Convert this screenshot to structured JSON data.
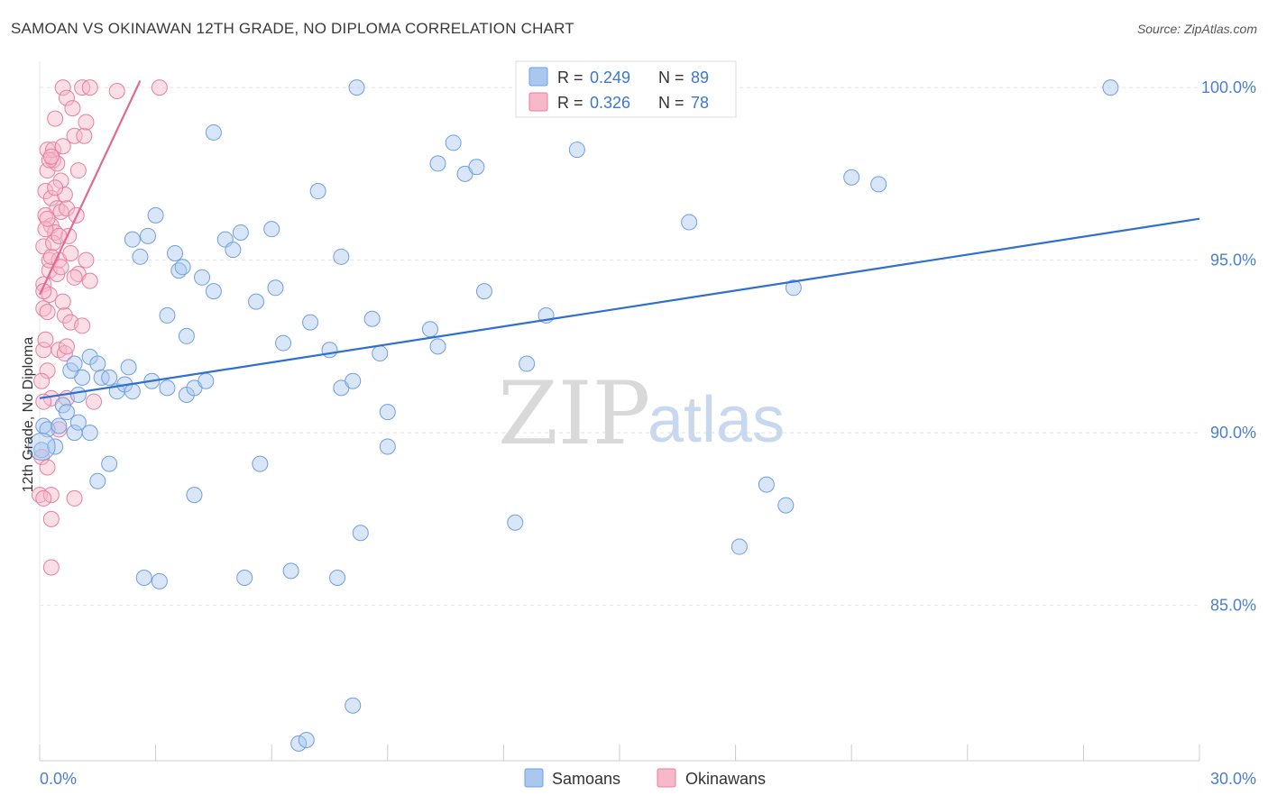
{
  "header": {
    "title": "SAMOAN VS OKINAWAN 12TH GRADE, NO DIPLOMA CORRELATION CHART",
    "source": "Source: ZipAtlas.com"
  },
  "watermark": {
    "zip": "ZIP",
    "atlas": "atlas"
  },
  "legend": {
    "items": [
      {
        "r_label": "R =",
        "r_value": "0.249",
        "n_label": "N =",
        "n_value": "89",
        "color": "#a9c8f0",
        "stroke": "#6f9fe0"
      },
      {
        "r_label": "R =",
        "r_value": "0.326",
        "n_label": "N =",
        "n_value": "78",
        "color": "#f7b8ca",
        "stroke": "#e87ea0"
      }
    ]
  },
  "bottom_legend": {
    "samoans": "Samoans",
    "okinawans": "Okinawans"
  },
  "chart_data": {
    "type": "scatter",
    "title": "SAMOAN VS OKINAWAN 12TH GRADE, NO DIPLOMA CORRELATION CHART",
    "xlabel": "",
    "ylabel": "12th Grade, No Diploma",
    "xlim": [
      0,
      30
    ],
    "ylim": [
      80.5,
      100.5
    ],
    "x_tick_labels": [
      "0.0%",
      "30.0%"
    ],
    "y_ticks": [
      85,
      90,
      95,
      100
    ],
    "y_tick_labels": [
      "85.0%",
      "90.0%",
      "95.0%",
      "100.0%"
    ],
    "grid": true,
    "colors": {
      "samoans": "#6f9fe0",
      "okinawans": "#e87ea0",
      "samoans_line": "#2f6fce",
      "okinawans_line": "#e06a95"
    },
    "series": [
      {
        "name": "Samoans",
        "trend": {
          "x": [
            0,
            30
          ],
          "y": [
            91.0,
            96.2
          ]
        },
        "points": [
          [
            0.05,
            89.5
          ],
          [
            0.1,
            90.2
          ],
          [
            0.2,
            90.1
          ],
          [
            0.4,
            89.6
          ],
          [
            0.5,
            90.2
          ],
          [
            0.6,
            90.8
          ],
          [
            0.7,
            90.6
          ],
          [
            0.9,
            90.0
          ],
          [
            1.0,
            91.1
          ],
          [
            1.1,
            91.6
          ],
          [
            0.8,
            91.8
          ],
          [
            0.9,
            92.0
          ],
          [
            1.3,
            92.2
          ],
          [
            1.5,
            92.0
          ],
          [
            1.6,
            91.6
          ],
          [
            1.8,
            91.6
          ],
          [
            2.0,
            91.2
          ],
          [
            2.2,
            91.4
          ],
          [
            2.4,
            91.2
          ],
          [
            2.9,
            91.5
          ],
          [
            3.3,
            91.3
          ],
          [
            3.8,
            91.1
          ],
          [
            4.0,
            91.3
          ],
          [
            4.3,
            91.5
          ],
          [
            2.4,
            95.6
          ],
          [
            2.6,
            95.1
          ],
          [
            2.8,
            95.7
          ],
          [
            3.0,
            96.3
          ],
          [
            3.5,
            95.2
          ],
          [
            3.6,
            94.7
          ],
          [
            3.7,
            94.8
          ],
          [
            4.2,
            94.5
          ],
          [
            4.5,
            94.1
          ],
          [
            4.8,
            95.6
          ],
          [
            5.0,
            95.3
          ],
          [
            5.2,
            95.8
          ],
          [
            5.6,
            93.8
          ],
          [
            6.0,
            95.9
          ],
          [
            6.1,
            94.2
          ],
          [
            6.3,
            92.6
          ],
          [
            7.0,
            93.2
          ],
          [
            7.2,
            97.0
          ],
          [
            7.5,
            92.4
          ],
          [
            7.8,
            91.3
          ],
          [
            8.1,
            91.5
          ],
          [
            8.6,
            93.3
          ],
          [
            8.8,
            92.3
          ],
          [
            9.0,
            90.6
          ],
          [
            3.3,
            93.4
          ],
          [
            3.8,
            92.8
          ],
          [
            4.5,
            98.7
          ],
          [
            2.3,
            91.9
          ],
          [
            1.3,
            90.0
          ],
          [
            1.8,
            89.1
          ],
          [
            1.5,
            88.6
          ],
          [
            2.7,
            85.8
          ],
          [
            3.1,
            85.7
          ],
          [
            4.0,
            88.2
          ],
          [
            5.3,
            85.8
          ],
          [
            5.7,
            89.1
          ],
          [
            6.5,
            86.0
          ],
          [
            7.7,
            85.8
          ],
          [
            8.3,
            87.1
          ],
          [
            8.1,
            82.1
          ],
          [
            6.7,
            81.0
          ],
          [
            6.9,
            81.1
          ],
          [
            8.2,
            100.0
          ],
          [
            9.0,
            89.6
          ],
          [
            10.1,
            93.0
          ],
          [
            10.3,
            92.5
          ],
          [
            10.3,
            97.8
          ],
          [
            10.7,
            98.4
          ],
          [
            11.0,
            97.5
          ],
          [
            11.3,
            97.7
          ],
          [
            11.5,
            94.1
          ],
          [
            12.3,
            87.4
          ],
          [
            12.6,
            92.0
          ],
          [
            13.1,
            93.4
          ],
          [
            13.9,
            98.2
          ],
          [
            16.8,
            96.1
          ],
          [
            18.1,
            86.7
          ],
          [
            18.8,
            88.5
          ],
          [
            19.3,
            87.9
          ],
          [
            19.5,
            94.2
          ],
          [
            21.0,
            97.4
          ],
          [
            21.7,
            97.2
          ],
          [
            27.7,
            100.0
          ],
          [
            7.8,
            95.1
          ],
          [
            1.0,
            90.3
          ]
        ]
      },
      {
        "name": "Okinawans",
        "trend": {
          "x": [
            0,
            2.6
          ],
          "y": [
            94.0,
            100.2
          ]
        },
        "points": [
          [
            0.0,
            88.2
          ],
          [
            0.05,
            89.3
          ],
          [
            0.1,
            92.4
          ],
          [
            0.1,
            93.6
          ],
          [
            0.1,
            94.3
          ],
          [
            0.1,
            95.4
          ],
          [
            0.15,
            96.3
          ],
          [
            0.15,
            97.0
          ],
          [
            0.2,
            97.6
          ],
          [
            0.2,
            98.2
          ],
          [
            0.25,
            94.7
          ],
          [
            0.25,
            95.0
          ],
          [
            0.3,
            96.0
          ],
          [
            0.3,
            96.8
          ],
          [
            0.35,
            97.9
          ],
          [
            0.35,
            98.2
          ],
          [
            0.4,
            99.1
          ],
          [
            0.4,
            95.8
          ],
          [
            0.45,
            96.5
          ],
          [
            0.45,
            94.6
          ],
          [
            0.5,
            95.0
          ],
          [
            0.5,
            92.4
          ],
          [
            0.55,
            97.3
          ],
          [
            0.55,
            96.4
          ],
          [
            0.6,
            100.0
          ],
          [
            0.6,
            98.3
          ],
          [
            0.65,
            96.9
          ],
          [
            0.65,
            93.4
          ],
          [
            0.7,
            99.7
          ],
          [
            0.7,
            96.5
          ],
          [
            0.75,
            95.7
          ],
          [
            0.8,
            95.2
          ],
          [
            0.8,
            93.2
          ],
          [
            0.85,
            99.4
          ],
          [
            0.9,
            98.6
          ],
          [
            0.95,
            96.3
          ],
          [
            1.0,
            97.6
          ],
          [
            1.0,
            94.6
          ],
          [
            1.1,
            100.0
          ],
          [
            1.15,
            98.6
          ],
          [
            1.2,
            99.0
          ],
          [
            1.3,
            100.0
          ],
          [
            1.2,
            95.0
          ],
          [
            1.1,
            93.1
          ],
          [
            0.3,
            88.2
          ],
          [
            0.3,
            87.5
          ],
          [
            0.3,
            86.1
          ],
          [
            0.9,
            88.1
          ],
          [
            0.5,
            90.1
          ],
          [
            0.3,
            91.0
          ],
          [
            0.2,
            91.8
          ],
          [
            0.15,
            92.7
          ],
          [
            0.2,
            93.5
          ],
          [
            0.25,
            94.0
          ],
          [
            0.3,
            95.1
          ],
          [
            0.35,
            95.5
          ],
          [
            0.4,
            97.1
          ],
          [
            0.45,
            97.8
          ],
          [
            0.5,
            95.7
          ],
          [
            0.55,
            94.8
          ],
          [
            0.6,
            93.8
          ],
          [
            0.65,
            92.3
          ],
          [
            0.7,
            91.0
          ],
          [
            1.4,
            90.9
          ],
          [
            2.0,
            99.9
          ],
          [
            3.1,
            100.0
          ],
          [
            0.1,
            94.1
          ],
          [
            0.15,
            95.9
          ],
          [
            0.2,
            96.2
          ],
          [
            0.25,
            97.9
          ],
          [
            0.3,
            98.0
          ],
          [
            0.05,
            91.5
          ],
          [
            0.1,
            90.9
          ],
          [
            0.2,
            89.0
          ],
          [
            0.1,
            88.1
          ],
          [
            0.9,
            94.5
          ],
          [
            1.3,
            94.4
          ],
          [
            0.7,
            92.5
          ]
        ]
      }
    ]
  }
}
